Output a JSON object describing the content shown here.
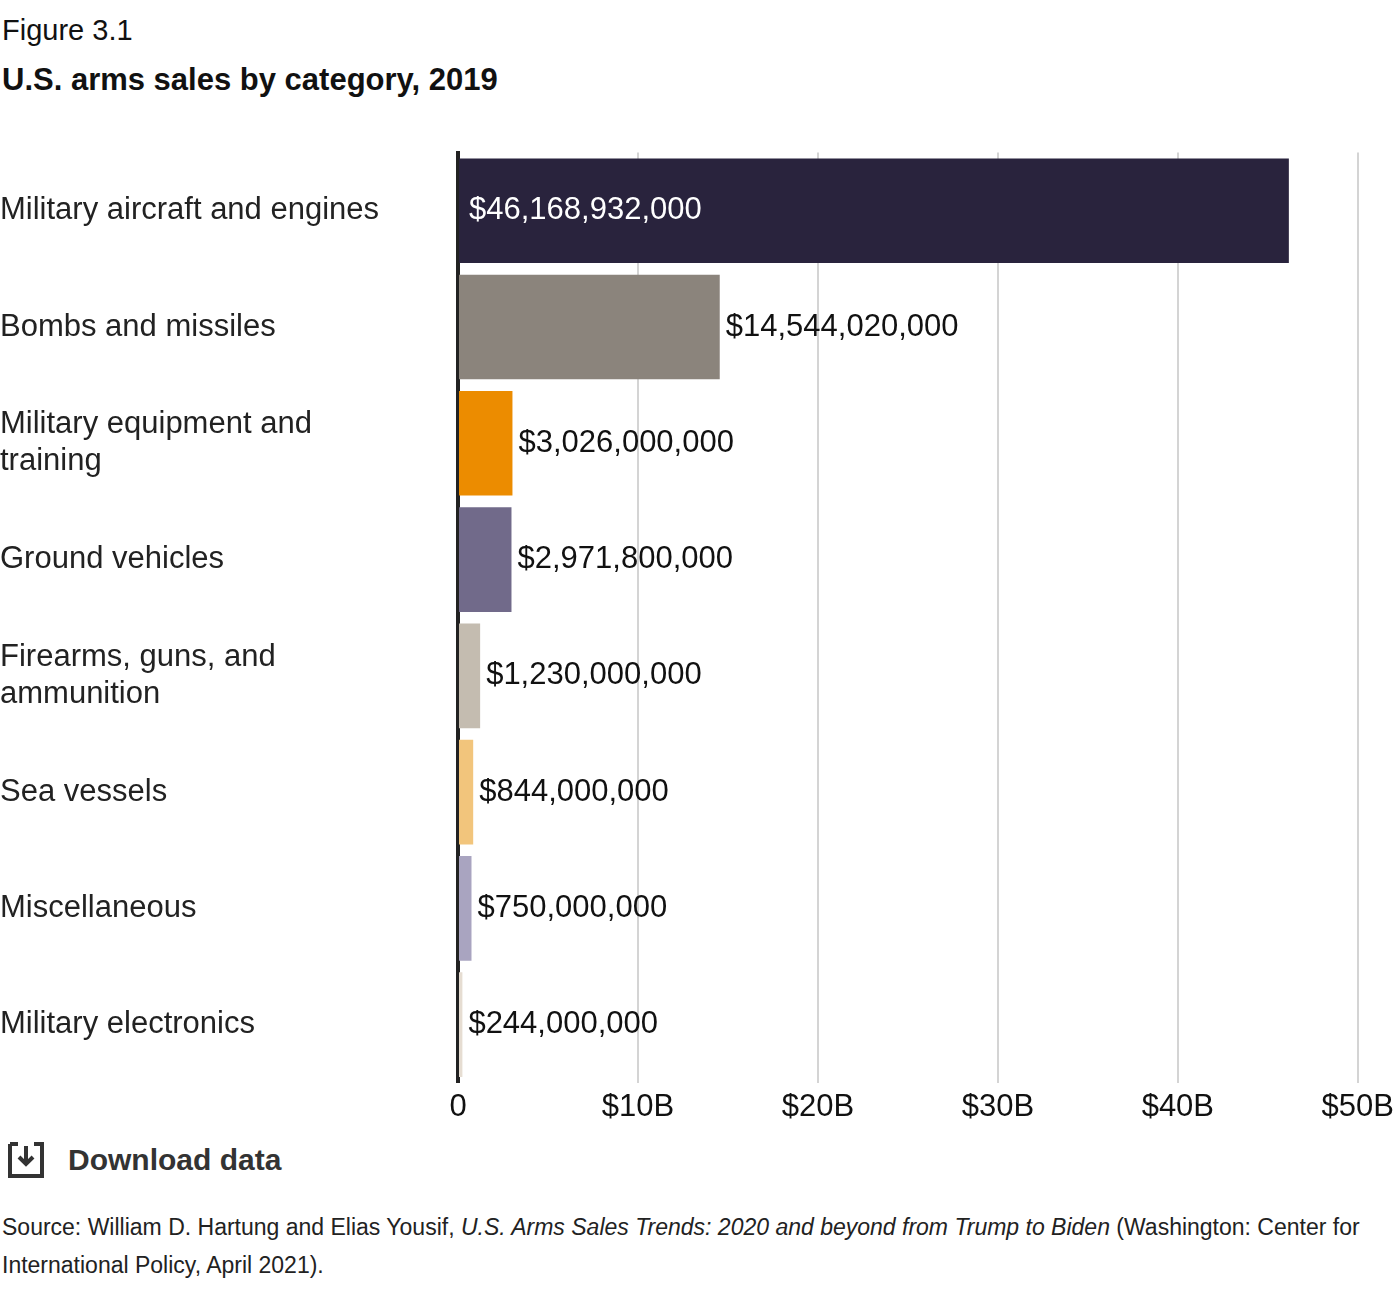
{
  "figure_label": "Figure 3.1",
  "download_label": "Download data",
  "source": {
    "before": "Source: William D. Hartung and Elias Yousif, ",
    "italic": "U.S. Arms Sales Trends: 2020 and beyond from Trump to Biden",
    "after": " (Washington: Center for International Policy, April 2021)."
  },
  "chart_data": {
    "type": "bar",
    "orientation": "horizontal",
    "title": "U.S. arms sales by category, 2019",
    "categories": [
      "Military aircraft and engines",
      "Bombs and missiles",
      "Military equipment and training",
      "Ground vehicles",
      "Firearms, guns, and ammunition",
      "Sea vessels",
      "Miscellaneous",
      "Military electronics"
    ],
    "values": [
      46168932000,
      14544020000,
      3026000000,
      2971800000,
      1230000000,
      844000000,
      750000000,
      244000000
    ],
    "value_labels": [
      "$46,168,932,000",
      "$14,544,020,000",
      "$3,026,000,000",
      "$2,971,800,000",
      "$1,230,000,000",
      "$844,000,000",
      "$750,000,000",
      "$244,000,000"
    ],
    "colors": [
      "#29233d",
      "#8b847c",
      "#ec8c00",
      "#716a8a",
      "#c4bcb0",
      "#f2c57c",
      "#a9a4c0",
      "#e6ddd2"
    ],
    "data_labels": true,
    "xlim": [
      0,
      50000000000
    ],
    "xticks": [
      0,
      {
        "value": 10000000000,
        "label": "$10B"
      },
      {
        "value": 20000000000,
        "label": "$20B"
      },
      {
        "value": 30000000000,
        "label": "$30B"
      },
      {
        "value": 40000000000,
        "label": "$40B"
      },
      {
        "value": 50000000000,
        "label": "$50B"
      }
    ],
    "grid": true
  }
}
